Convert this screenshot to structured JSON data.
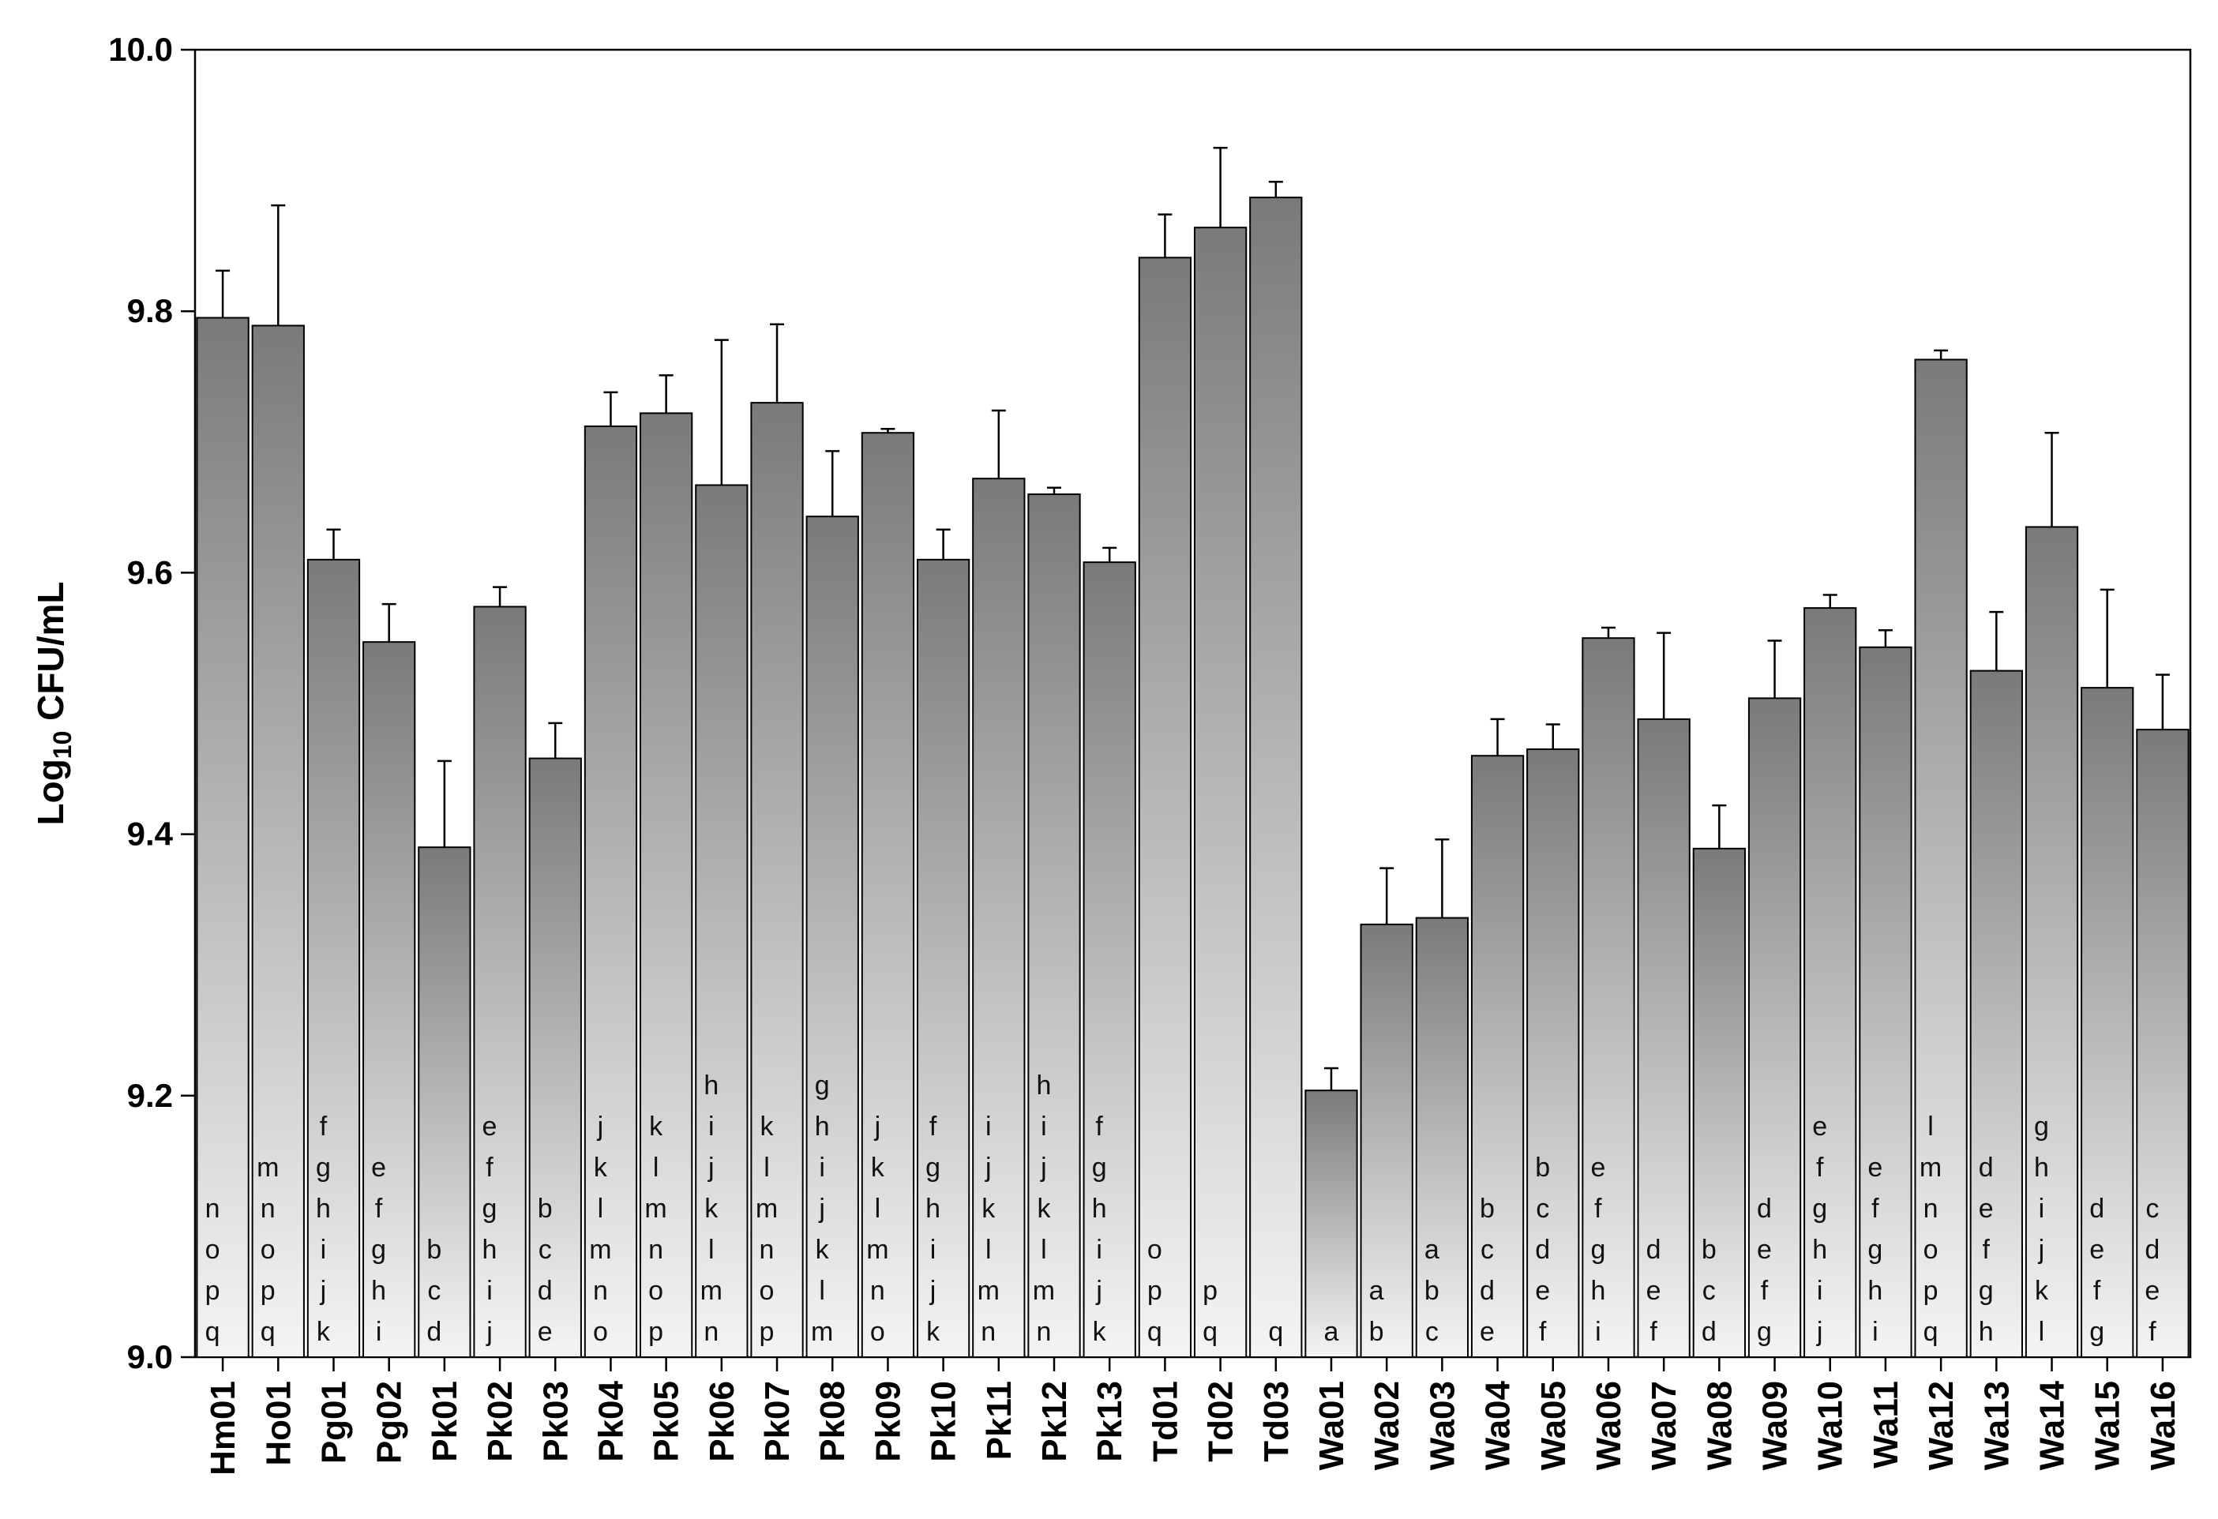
{
  "chart_data": {
    "type": "bar",
    "ylabel": "Log10 CFU/mL",
    "ylabel_parts": {
      "base": "Log",
      "subscript": "10",
      "rest": " CFU/mL"
    },
    "xlabel": "",
    "ylim": [
      9.0,
      10.0
    ],
    "yticks": [
      "9.0",
      "9.2",
      "9.4",
      "9.6",
      "9.8",
      "10.0"
    ],
    "grid": false,
    "error_bars": true,
    "categories": [
      "Hm01",
      "Ho01",
      "Pg01",
      "Pg02",
      "Pk01",
      "Pk02",
      "Pk03",
      "Pk04",
      "Pk05",
      "Pk06",
      "Pk07",
      "Pk08",
      "Pk09",
      "Pk10",
      "Pk11",
      "Pk12",
      "Pk13",
      "Td01",
      "Td02",
      "Td03",
      "Wa01",
      "Wa02",
      "Wa03",
      "Wa04",
      "Wa05",
      "Wa06",
      "Wa07",
      "Wa08",
      "Wa09",
      "Wa10",
      "Wa11",
      "Wa12",
      "Wa13",
      "Wa14",
      "Wa15",
      "Wa16"
    ],
    "values": [
      9.795,
      9.789,
      9.61,
      9.547,
      9.39,
      9.574,
      9.458,
      9.712,
      9.722,
      9.667,
      9.73,
      9.643,
      9.707,
      9.61,
      9.672,
      9.66,
      9.608,
      9.841,
      9.864,
      9.887,
      9.204,
      9.331,
      9.336,
      9.46,
      9.465,
      9.55,
      9.488,
      9.389,
      9.504,
      9.573,
      9.543,
      9.763,
      9.525,
      9.635,
      9.512,
      9.48
    ],
    "errors": [
      0.036,
      0.092,
      0.023,
      0.029,
      0.066,
      0.015,
      0.027,
      0.026,
      0.029,
      0.111,
      0.06,
      0.05,
      0.003,
      0.023,
      0.052,
      0.005,
      0.011,
      0.033,
      0.061,
      0.012,
      0.017,
      0.043,
      0.06,
      0.028,
      0.019,
      0.008,
      0.066,
      0.033,
      0.044,
      0.01,
      0.013,
      0.007,
      0.045,
      0.072,
      0.075,
      0.042
    ],
    "significance_letters": [
      [
        "n",
        "o",
        "p",
        "q"
      ],
      [
        "m",
        "n",
        "o",
        "p",
        "q"
      ],
      [
        "f",
        "g",
        "h",
        "i",
        "j",
        "k"
      ],
      [
        "e",
        "f",
        "g",
        "h",
        "i"
      ],
      [
        "b",
        "c",
        "d"
      ],
      [
        "e",
        "f",
        "g",
        "h",
        "i",
        "j"
      ],
      [
        "b",
        "c",
        "d",
        "e"
      ],
      [
        "j",
        "k",
        "l",
        "m",
        "n",
        "o"
      ],
      [
        "k",
        "l",
        "m",
        "n",
        "o",
        "p"
      ],
      [
        "h",
        "i",
        "j",
        "k",
        "l",
        "m",
        "n"
      ],
      [
        "k",
        "l",
        "m",
        "n",
        "o",
        "p"
      ],
      [
        "g",
        "h",
        "i",
        "j",
        "k",
        "l",
        "m"
      ],
      [
        "j",
        "k",
        "l",
        "m",
        "n",
        "o"
      ],
      [
        "f",
        "g",
        "h",
        "i",
        "j",
        "k"
      ],
      [
        "i",
        "j",
        "k",
        "l",
        "m",
        "n"
      ],
      [
        "h",
        "i",
        "j",
        "k",
        "l",
        "m",
        "n"
      ],
      [
        "f",
        "g",
        "h",
        "i",
        "j",
        "k"
      ],
      [
        "o",
        "p",
        "q"
      ],
      [
        "p",
        "q"
      ],
      [
        "q"
      ],
      [
        "a"
      ],
      [
        "a",
        "b"
      ],
      [
        "a",
        "b",
        "c"
      ],
      [
        "b",
        "c",
        "d",
        "e"
      ],
      [
        "b",
        "c",
        "d",
        "e",
        "f"
      ],
      [
        "e",
        "f",
        "g",
        "h",
        "i"
      ],
      [
        "d",
        "e",
        "f"
      ],
      [
        "b",
        "c",
        "d"
      ],
      [
        "d",
        "e",
        "f",
        "g"
      ],
      [
        "e",
        "f",
        "g",
        "h",
        "i",
        "j"
      ],
      [
        "e",
        "f",
        "g",
        "h",
        "i"
      ],
      [
        "l",
        "m",
        "n",
        "o",
        "p",
        "q"
      ],
      [
        "d",
        "e",
        "f",
        "g",
        "h"
      ],
      [
        "g",
        "h",
        "i",
        "j",
        "k",
        "l"
      ],
      [
        "d",
        "e",
        "f",
        "g"
      ],
      [
        "c",
        "d",
        "e",
        "f"
      ]
    ],
    "colors": {
      "bar_top": "#7a7a7a",
      "bar_bottom": "#f4f4f4",
      "bar_stroke": "#000000"
    }
  }
}
